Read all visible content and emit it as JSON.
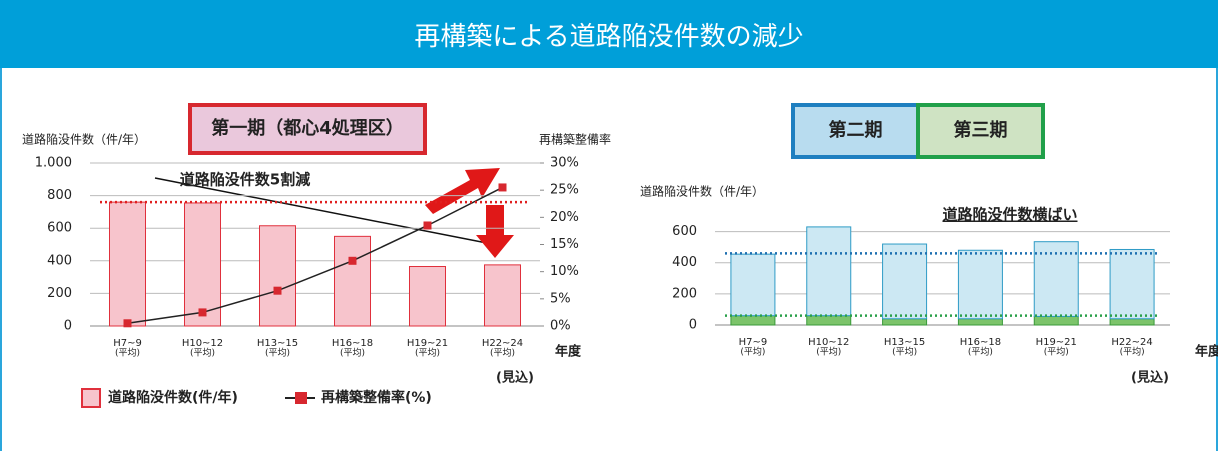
{
  "header": {
    "title": "再構築による道路陥没件数の減少"
  },
  "chart_data": [
    {
      "type": "bar_line",
      "title_boxes": [
        {
          "text": "第一期（都心4処理区）",
          "fill": "#eac8dc",
          "border": "#d7282f"
        }
      ],
      "ylabel": "道路陥没件数（件/年）",
      "y2label": "再構築整備率",
      "xlabel": "年度",
      "annotations": [
        "道路陥没件数5割減",
        "(見込)"
      ],
      "categories": [
        "H7~9",
        "H10~12",
        "H13~15",
        "H16~18",
        "H19~21",
        "H22~24"
      ],
      "category_sublabels": [
        "(平均)",
        "(平均)",
        "(平均)",
        "(平均)",
        "(平均)",
        "(平均)"
      ],
      "series": [
        {
          "name": "道路陥没件数(件/年)",
          "color": "#f7c4cc",
          "border": "#e0303c",
          "values": [
            760,
            755,
            615,
            550,
            365,
            375
          ]
        },
        {
          "name": "再構築整備率(%)",
          "color": "#d7282f",
          "axis": "y2",
          "values": [
            0.5,
            2.5,
            6.5,
            12,
            18.5,
            25.5
          ]
        }
      ],
      "reference_lines": [
        {
          "value": 760,
          "color": "#e02020"
        }
      ],
      "ylim": [
        0,
        1000
      ],
      "yticks": [
        0,
        200,
        400,
        600,
        800,
        {
          "value": 1000,
          "label": "1.000"
        }
      ],
      "y2lim": [
        0,
        30
      ],
      "y2ticks": [
        {
          "value": 0,
          "label": "0%"
        },
        {
          "value": 5,
          "label": "5%"
        },
        {
          "value": 10,
          "label": "10%"
        },
        {
          "value": 15,
          "label": "15%"
        },
        {
          "value": 20,
          "label": "20%"
        },
        {
          "value": 25,
          "label": "25%"
        },
        {
          "value": 30,
          "label": "30%"
        }
      ],
      "grid": true
    },
    {
      "type": "stacked_bar",
      "title_boxes": [
        {
          "text": "第二期",
          "fill": "#b8dcef",
          "border": "#1e7fc0"
        },
        {
          "text": "第三期",
          "fill": "#cfe3c3",
          "border": "#21a04a"
        }
      ],
      "ylabel": "道路陥没件数（件/年）",
      "xlabel": "年度",
      "annotations": [
        "道路陥没件数横ばい",
        "(見込)"
      ],
      "categories": [
        "H7~9",
        "H10~12",
        "H13~15",
        "H16~18",
        "H19~21",
        "H22~24"
      ],
      "category_sublabels": [
        "(平均)",
        "(平均)",
        "(平均)",
        "(平均)",
        "(平均)",
        "(平均)"
      ],
      "series": [
        {
          "color": "#7cc46a",
          "border": "#3a9a3a",
          "values": [
            60,
            60,
            40,
            40,
            55,
            40
          ]
        },
        {
          "color": "#cce8f3",
          "border": "#2e9bc6",
          "values": [
            395,
            570,
            480,
            440,
            480,
            445
          ]
        }
      ],
      "reference_lines": [
        {
          "value": 460,
          "color": "#1d6fb0"
        },
        {
          "value": 60,
          "color": "#2aa04a"
        }
      ],
      "ylim": [
        0,
        700
      ],
      "yticks": [
        0,
        200,
        400,
        600
      ],
      "grid": true
    }
  ]
}
